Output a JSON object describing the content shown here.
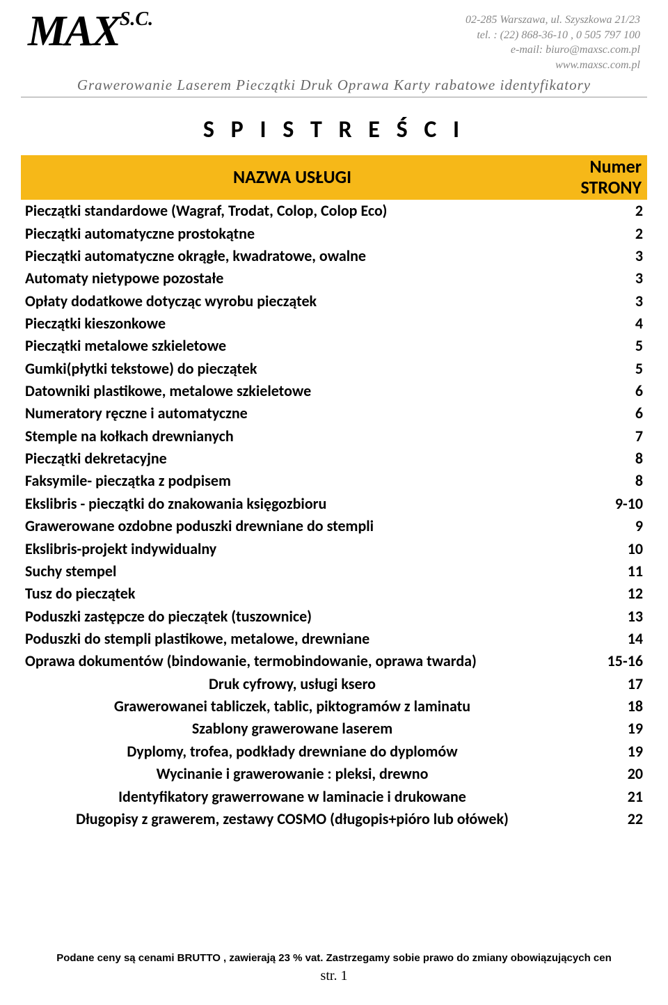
{
  "header": {
    "logo_main": "MAX",
    "logo_suffix": "S.C.",
    "contact": {
      "address": "02-285 Warszawa, ul. Szyszkowa 21/23",
      "tel": "tel. : (22) 868-36-10 , 0 505 797 100",
      "email": "e-mail: biuro@maxsc.com.pl",
      "web": "www.maxsc.com.pl"
    },
    "tagline": "Grawerowanie Laserem Pieczątki Druk Oprawa Karty rabatowe identyfikatory"
  },
  "title": "S P I S  T R E Ś C I",
  "table_header": {
    "name": "NAZWA  USŁUGI",
    "page_line1": "Numer",
    "page_line2": "STRONY"
  },
  "colors": {
    "header_bg": "#f6b818",
    "text": "#000000",
    "contact_text": "#888888",
    "tagline_text": "#666666",
    "rule": "#999999"
  },
  "rows": [
    {
      "name": "Pieczątki standardowe (Wagraf, Trodat, Colop, Colop Eco)",
      "page": "2",
      "center": false
    },
    {
      "name": "Pieczątki automatyczne prostokątne",
      "page": "2",
      "center": false
    },
    {
      "name": "Pieczątki automatyczne okrągłe, kwadratowe, owalne",
      "page": "3",
      "center": false
    },
    {
      "name": "Automaty nietypowe pozostałe",
      "page": "3",
      "center": false
    },
    {
      "name": "Opłaty dodatkowe dotycząc wyrobu pieczątek",
      "page": "3",
      "center": false
    },
    {
      "name": "Pieczątki kieszonkowe",
      "page": "4",
      "center": false
    },
    {
      "name": "Pieczątki metalowe szkieletowe",
      "page": "5",
      "center": false
    },
    {
      "name": "Gumki(płytki tekstowe) do pieczątek",
      "page": "5",
      "center": false
    },
    {
      "name": "Datowniki plastikowe, metalowe szkieletowe",
      "page": "6",
      "center": false
    },
    {
      "name": "Numeratory ręczne i automatyczne",
      "page": "6",
      "center": false
    },
    {
      "name": "Stemple na kołkach drewnianych",
      "page": "7",
      "center": false
    },
    {
      "name": "Pieczątki dekretacyjne",
      "page": "8",
      "center": false
    },
    {
      "name": "Faksymile- pieczątka z podpisem",
      "page": "8",
      "center": false
    },
    {
      "name": "Ekslibris - pieczątki do znakowania księgozbioru",
      "page": "9-10",
      "center": false
    },
    {
      "name": "Grawerowane ozdobne poduszki drewniane do stempli",
      "page": "9",
      "center": false
    },
    {
      "name": "Ekslibris-projekt indywidualny",
      "page": "10",
      "center": false
    },
    {
      "name": "Suchy stempel",
      "page": "11",
      "center": false
    },
    {
      "name": "Tusz do pieczątek",
      "page": "12",
      "center": false
    },
    {
      "name": "Poduszki zastępcze do pieczątek (tuszownice)",
      "page": "13",
      "center": false
    },
    {
      "name": "Poduszki do stempli plastikowe, metalowe, drewniane",
      "page": "14",
      "center": false
    },
    {
      "name": "Oprawa dokumentów (bindowanie, termobindowanie, oprawa twarda)",
      "page": "15-16",
      "center": false
    },
    {
      "name": "Druk cyfrowy, usługi ksero",
      "page": "17",
      "center": true
    },
    {
      "name": "Grawerowanei tabliczek, tablic, piktogramów z laminatu",
      "page": "18",
      "center": true
    },
    {
      "name": "Szablony grawerowane laserem",
      "page": "19",
      "center": true
    },
    {
      "name": "Dyplomy, trofea, podkłady drewniane do dyplomów",
      "page": "19",
      "center": true
    },
    {
      "name": "Wycinanie i grawerowanie : pleksi, drewno",
      "page": "20",
      "center": true
    },
    {
      "name": "Identyfikatory grawerrowane w laminacie i drukowane",
      "page": "21",
      "center": true
    },
    {
      "name": "Długopisy z grawerem, zestawy COSMO (długopis+pióro lub ołówek)",
      "page": "22",
      "center": true
    }
  ],
  "footer": {
    "note": "Podane ceny są cenami BRUTTO , zawierają 23 % vat.  Zastrzegamy sobie prawo  do zmiany obowiązujących cen",
    "pagenum": "str. 1"
  }
}
